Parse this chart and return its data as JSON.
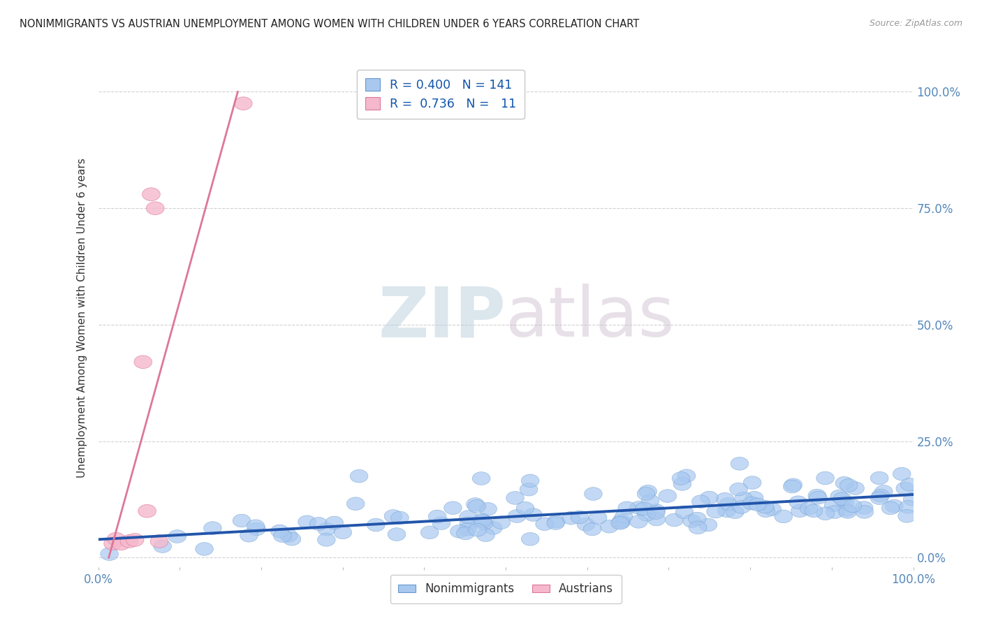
{
  "title": "NONIMMIGRANTS VS AUSTRIAN UNEMPLOYMENT AMONG WOMEN WITH CHILDREN UNDER 6 YEARS CORRELATION CHART",
  "source_text": "Source: ZipAtlas.com",
  "ylabel": "Unemployment Among Women with Children Under 6 years",
  "xlim": [
    0.0,
    1.0
  ],
  "ylim": [
    -0.02,
    1.05
  ],
  "ytick_values": [
    0.0,
    0.25,
    0.5,
    0.75,
    1.0
  ],
  "ytick_labels_right": [
    "0.0%",
    "25.0%",
    "50.0%",
    "75.0%",
    "100.0%"
  ],
  "blue_R": 0.4,
  "blue_N": 141,
  "pink_R": 0.736,
  "pink_N": 11,
  "blue_color": "#A8C8F0",
  "blue_edge_color": "#6699CC",
  "blue_line_color": "#2255AA",
  "pink_color": "#F5B8CC",
  "pink_edge_color": "#DD7799",
  "pink_line_color": "#DD7799",
  "background_color": "#FFFFFF",
  "grid_color": "#CCCCCC",
  "title_color": "#222222",
  "axis_label_color": "#5588BB",
  "watermark_color_zip": "#BBCEDD",
  "watermark_color_atlas": "#CCBBCC",
  "seed": 7
}
